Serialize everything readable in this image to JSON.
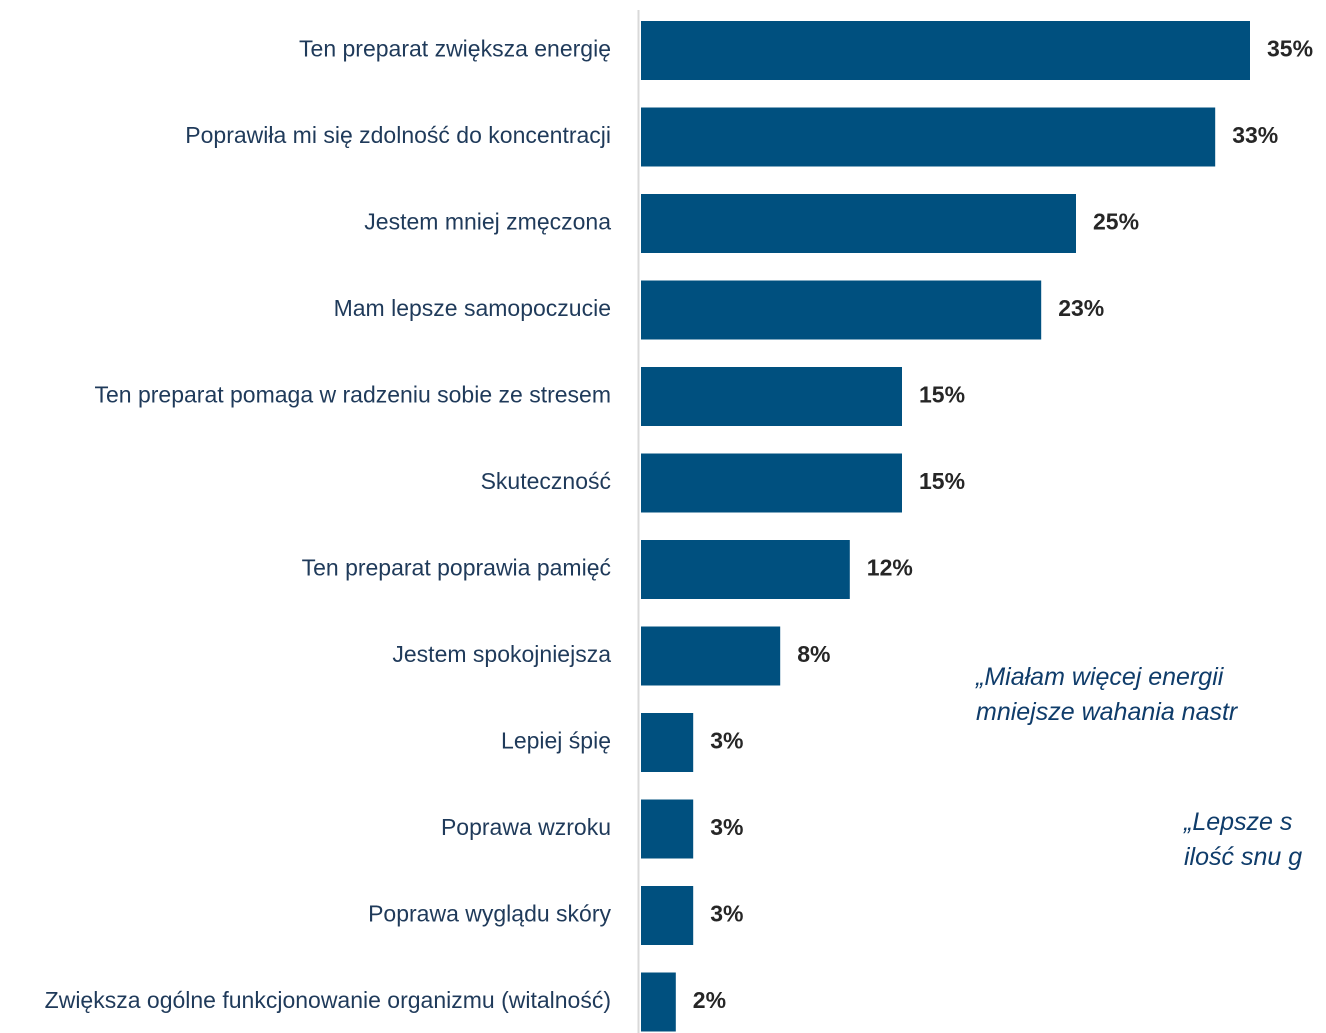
{
  "chart_data": {
    "type": "bar",
    "orientation": "horizontal",
    "categories": [
      "Ten preparat zwiększa energię",
      "Poprawiła mi się zdolność do koncentracji",
      "Jestem mniej zmęczona",
      "Mam lepsze samopoczucie",
      "Ten preparat pomaga w radzeniu sobie ze stresem",
      "Skuteczność",
      "Ten preparat poprawia pamięć",
      "Jestem spokojniejsza",
      "Lepiej śpię",
      "Poprawa wzroku",
      "Poprawa wyglądu skóry",
      "Zwiększa ogólne funkcjonowanie organizmu (witalność)"
    ],
    "values": [
      35,
      33,
      25,
      23,
      15,
      15,
      12,
      8,
      3,
      3,
      3,
      2
    ],
    "value_labels": [
      "35%",
      "33%",
      "25%",
      "23%",
      "15%",
      "15%",
      "12%",
      "8%",
      "3%",
      "3%",
      "3%",
      "2%"
    ],
    "bar_color": "#00507f",
    "xlim": [
      0,
      35
    ],
    "grid": false
  },
  "quotes": [
    {
      "line1": "„Miałam więcej energii",
      "line2": "mniejsze wahania nastr"
    },
    {
      "line1": "„Lepsze  s",
      "line2": "ilość snu g"
    }
  ]
}
